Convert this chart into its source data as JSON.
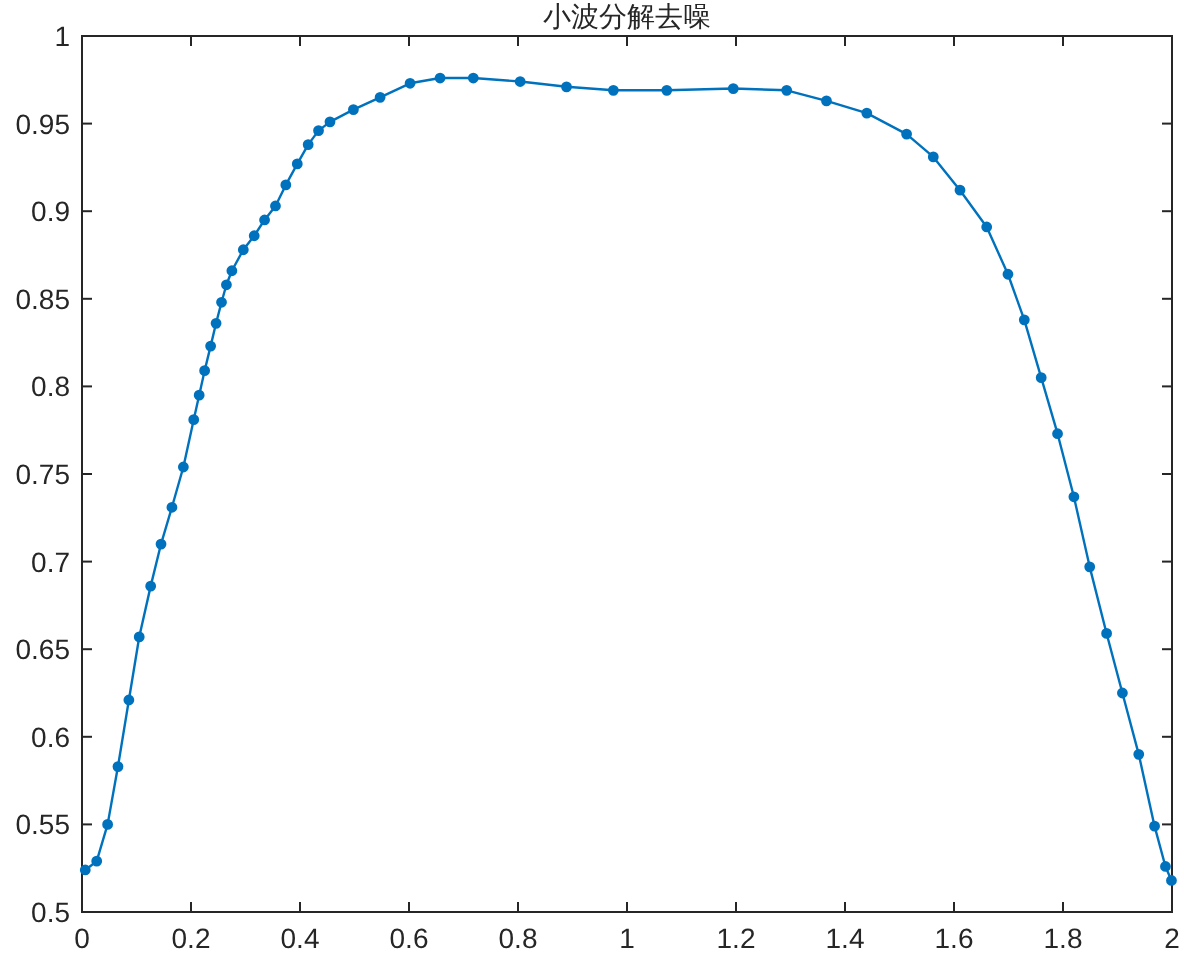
{
  "chart_data": {
    "type": "line",
    "title": "小波分解去噪",
    "x": [
      0.006,
      0.027,
      0.047,
      0.066,
      0.086,
      0.105,
      0.126,
      0.145,
      0.165,
      0.186,
      0.205,
      0.215,
      0.225,
      0.236,
      0.246,
      0.256,
      0.265,
      0.275,
      0.296,
      0.316,
      0.335,
      0.355,
      0.374,
      0.395,
      0.415,
      0.434,
      0.455,
      0.498,
      0.547,
      0.602,
      0.657,
      0.718,
      0.804,
      0.889,
      0.975,
      1.073,
      1.195,
      1.293,
      1.366,
      1.44,
      1.513,
      1.562,
      1.611,
      1.66,
      1.699,
      1.729,
      1.76,
      1.79,
      1.82,
      1.849,
      1.88,
      1.909,
      1.939,
      1.968,
      1.988,
      1.999
    ],
    "values": [
      0.524,
      0.529,
      0.55,
      0.583,
      0.621,
      0.657,
      0.686,
      0.71,
      0.731,
      0.754,
      0.781,
      0.795,
      0.809,
      0.823,
      0.836,
      0.848,
      0.858,
      0.866,
      0.878,
      0.886,
      0.895,
      0.903,
      0.915,
      0.927,
      0.938,
      0.946,
      0.951,
      0.958,
      0.965,
      0.973,
      0.976,
      0.976,
      0.974,
      0.971,
      0.969,
      0.969,
      0.97,
      0.969,
      0.963,
      0.956,
      0.944,
      0.931,
      0.912,
      0.891,
      0.864,
      0.838,
      0.805,
      0.773,
      0.737,
      0.697,
      0.659,
      0.625,
      0.59,
      0.549,
      0.526,
      0.518
    ],
    "color": "#0072bd",
    "marker": "circle",
    "line_style": "solid",
    "grid": false,
    "xlim": [
      0,
      2
    ],
    "ylim": [
      0.5,
      1
    ],
    "xticks": [
      0,
      0.2,
      0.4,
      0.6,
      0.8,
      1,
      1.2,
      1.4,
      1.6,
      1.8,
      2
    ],
    "yticks": [
      0.5,
      0.55,
      0.6,
      0.65,
      0.7,
      0.75,
      0.8,
      0.85,
      0.9,
      0.95,
      1
    ]
  }
}
